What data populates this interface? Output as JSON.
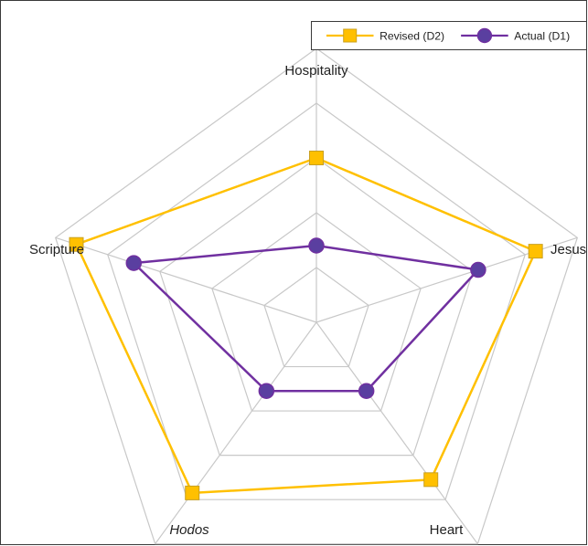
{
  "chart_data": {
    "type": "radar",
    "categories": [
      "Hospitality",
      "Jesus",
      "Heart",
      "Hodos",
      "Scripture"
    ],
    "italic_categories": [
      "Hodos"
    ],
    "r_max": 5,
    "grid_levels": [
      1,
      2,
      3,
      4,
      5
    ],
    "grid": true,
    "legend_position": "top-right",
    "series": [
      {
        "name": "Revised (D2)",
        "marker": "square",
        "color": "#FFC000",
        "values": [
          3,
          4.2,
          3.55,
          3.85,
          4.6
        ]
      },
      {
        "name": "Actual (D1)",
        "marker": "circle",
        "color": "#7030A0",
        "values": [
          1.4,
          3.1,
          1.55,
          1.55,
          3.5
        ]
      }
    ]
  },
  "colors": {
    "grid": "#c8c8c8",
    "marker_fill_circle": "#5a3fa0",
    "marker_stroke_square": "#c9a020"
  }
}
